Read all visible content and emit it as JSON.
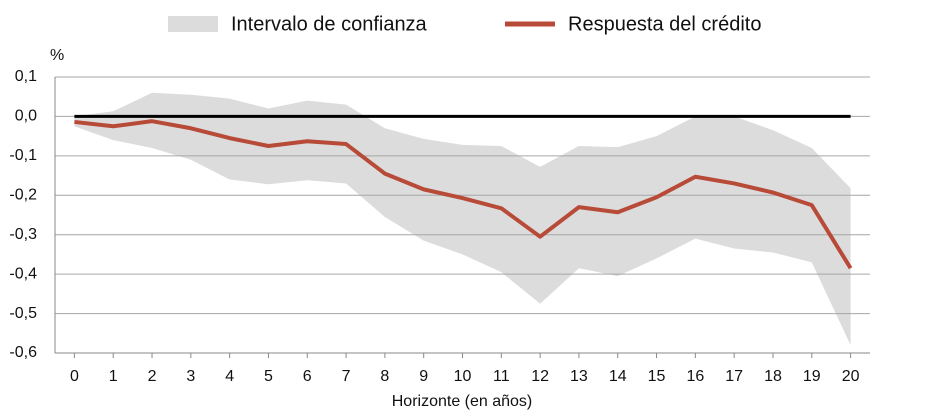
{
  "chart_data": {
    "type": "line",
    "y_unit": "%",
    "x_label": "Horizonte (en años)",
    "x": [
      0,
      1,
      2,
      3,
      4,
      5,
      6,
      7,
      8,
      9,
      10,
      11,
      12,
      13,
      14,
      15,
      16,
      17,
      18,
      19,
      20
    ],
    "xlim": [
      -0.5,
      20.5
    ],
    "xticks": [
      0,
      1,
      2,
      3,
      4,
      5,
      6,
      7,
      8,
      9,
      10,
      11,
      12,
      13,
      14,
      15,
      16,
      17,
      18,
      19,
      20
    ],
    "ylim": [
      -0.6,
      0.1
    ],
    "yticks": [
      {
        "value": 0.1,
        "label": "0,1"
      },
      {
        "value": 0,
        "label": "0,0"
      },
      {
        "value": -0.1,
        "label": "-0,1"
      },
      {
        "value": -0.2,
        "label": "-0,2"
      },
      {
        "value": -0.3,
        "label": "-0,3"
      },
      {
        "value": -0.4,
        "label": "-0,4"
      },
      {
        "value": -0.5,
        "label": "-0,5"
      },
      {
        "value": -0.6,
        "label": "-0,6"
      }
    ],
    "grid": true,
    "zero_line": true,
    "series": [
      {
        "name": "Intervalo de confianza",
        "color": "#dcdcdc",
        "kind": "band",
        "lower": [
          -0.025,
          -0.06,
          -0.08,
          -0.11,
          -0.16,
          -0.172,
          -0.162,
          -0.17,
          -0.255,
          -0.315,
          -0.35,
          -0.395,
          -0.475,
          -0.385,
          -0.405,
          -0.36,
          -0.31,
          -0.335,
          -0.345,
          -0.37,
          -0.58
        ],
        "upper": [
          0,
          0.013,
          0.06,
          0.055,
          0.045,
          0.02,
          0.04,
          0.03,
          -0.03,
          -0.057,
          -0.072,
          -0.075,
          -0.128,
          -0.075,
          -0.078,
          -0.05,
          0,
          0,
          -0.035,
          -0.08,
          -0.182
        ]
      },
      {
        "name": "Respuesta del crédito",
        "color": "#b84a38",
        "kind": "line",
        "values": [
          -0.014,
          -0.025,
          -0.012,
          -0.03,
          -0.055,
          -0.075,
          -0.063,
          -0.07,
          -0.145,
          -0.185,
          -0.207,
          -0.233,
          -0.305,
          -0.23,
          -0.243,
          -0.205,
          -0.153,
          -0.17,
          -0.193,
          -0.225,
          -0.385
        ]
      }
    ]
  }
}
